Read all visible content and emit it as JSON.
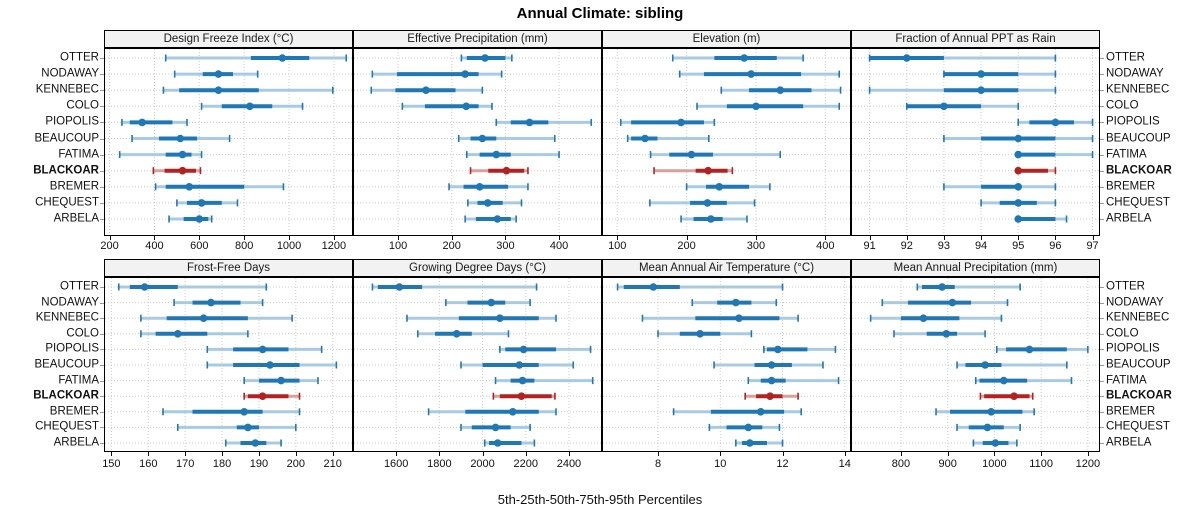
{
  "title": "Annual Climate: sibling",
  "caption": "5th-25th-50th-75th-95th Percentiles",
  "sites": [
    "OTTER",
    "NODAWAY",
    "KENNEBEC",
    "COLO",
    "PIOPOLIS",
    "BEAUCOUP",
    "FATIMA",
    "BLACKOAR",
    "BREMER",
    "CHEQUEST",
    "ARBELA"
  ],
  "highlight_site": "BLACKOAR",
  "colors": {
    "blue": "#1f77b4",
    "blue_light": "#a9cbe2",
    "red": "#b22222",
    "red_light": "#d9a09c",
    "strip_bg": "#f2f2f2",
    "panel_border": "#000000",
    "grid": "#cccccc",
    "text": "#111111"
  },
  "chart_data": {
    "type": "scatter",
    "subtype": "trellis-dot-whisker-percentiles",
    "percentiles": [
      5,
      25,
      50,
      75,
      95
    ],
    "legend_note": "each row shows 5th-25th-50th-75th-95th percentile whiskers with median dot; BLACKOAR highlighted red",
    "grid": "dotted",
    "panels": [
      {
        "title": "Design Freeze Index (°C)",
        "ticks": [
          200,
          400,
          600,
          800,
          1000,
          1200
        ],
        "xlim": [
          175,
          1285
        ],
        "values": [
          [
            450,
            830,
            970,
            1090,
            1255
          ],
          [
            490,
            615,
            685,
            750,
            860
          ],
          [
            440,
            510,
            685,
            865,
            1195
          ],
          [
            610,
            700,
            825,
            925,
            1060
          ],
          [
            255,
            290,
            345,
            480,
            545
          ],
          [
            300,
            420,
            515,
            590,
            735
          ],
          [
            245,
            450,
            525,
            565,
            610
          ],
          [
            395,
            445,
            525,
            585,
            605
          ],
          [
            405,
            450,
            555,
            800,
            975
          ],
          [
            500,
            545,
            610,
            700,
            770
          ],
          [
            465,
            530,
            600,
            640,
            655
          ]
        ]
      },
      {
        "title": "Effective Precipitation (mm)",
        "ticks": [
          100,
          200,
          300,
          400
        ],
        "xlim": [
          16,
          480
        ],
        "values": [
          [
            218,
            228,
            262,
            300,
            312
          ],
          [
            52,
            98,
            225,
            250,
            293
          ],
          [
            50,
            95,
            152,
            207,
            257
          ],
          [
            108,
            150,
            227,
            250,
            275
          ],
          [
            283,
            310,
            345,
            380,
            460
          ],
          [
            213,
            235,
            257,
            283,
            392
          ],
          [
            228,
            252,
            283,
            310,
            400
          ],
          [
            235,
            268,
            302,
            335,
            342
          ],
          [
            195,
            222,
            252,
            305,
            342
          ],
          [
            230,
            248,
            267,
            295,
            330
          ],
          [
            225,
            245,
            285,
            310,
            320
          ]
        ]
      },
      {
        "title": "Elevation (m)",
        "ticks": [
          100,
          200,
          300,
          400
        ],
        "xlim": [
          78,
          437
        ],
        "values": [
          [
            180,
            240,
            283,
            330,
            368
          ],
          [
            190,
            225,
            293,
            365,
            420
          ],
          [
            250,
            290,
            335,
            380,
            422
          ],
          [
            215,
            258,
            300,
            368,
            420
          ],
          [
            105,
            120,
            192,
            225,
            240
          ],
          [
            115,
            120,
            140,
            158,
            232
          ],
          [
            148,
            175,
            207,
            238,
            335
          ],
          [
            153,
            213,
            231,
            259,
            266
          ],
          [
            200,
            228,
            247,
            290,
            320
          ],
          [
            147,
            205,
            230,
            258,
            298
          ],
          [
            192,
            210,
            235,
            252,
            287
          ]
        ]
      },
      {
        "title": "Fraction of Annual PPT as Rain",
        "ticks": [
          91,
          92,
          93,
          94,
          95,
          96,
          97
        ],
        "xlim": [
          90.5,
          97.2
        ],
        "values": [
          [
            91,
            91,
            92,
            93,
            96
          ],
          [
            93,
            93,
            94,
            95,
            96
          ],
          [
            91,
            93,
            94,
            95,
            96
          ],
          [
            92,
            92,
            93,
            94,
            95
          ],
          [
            95,
            95.3,
            96,
            96.5,
            97
          ],
          [
            93,
            94,
            95,
            96,
            97
          ],
          [
            95,
            95,
            95,
            96,
            97
          ],
          [
            95,
            95,
            95,
            95.8,
            96
          ],
          [
            93,
            94,
            95,
            95,
            96
          ],
          [
            94,
            94.5,
            95,
            95.5,
            96
          ],
          [
            95,
            95,
            95,
            96,
            96.3
          ]
        ]
      },
      {
        "title": "Frost-Free Days",
        "ticks": [
          150,
          160,
          170,
          180,
          190,
          200,
          210
        ],
        "xlim": [
          148,
          215.5
        ],
        "values": [
          [
            152,
            155,
            159,
            168,
            192
          ],
          [
            167,
            172,
            177,
            185,
            191
          ],
          [
            158,
            165,
            175,
            187,
            199
          ],
          [
            158,
            162,
            168,
            176,
            187
          ],
          [
            176,
            183,
            191,
            198,
            207
          ],
          [
            176,
            183,
            193,
            201,
            211
          ],
          [
            186,
            190,
            196,
            201,
            206
          ],
          [
            186,
            187,
            191,
            198,
            201
          ],
          [
            164,
            172,
            186,
            191,
            201
          ],
          [
            168,
            184,
            187,
            190,
            200
          ],
          [
            181,
            185,
            189,
            192,
            196
          ]
        ]
      },
      {
        "title": "Growing Degree Days (°C)",
        "ticks": [
          1600,
          1800,
          2000,
          2200,
          2400
        ],
        "xlim": [
          1400,
          2553
        ],
        "values": [
          [
            1490,
            1515,
            1615,
            1720,
            2250
          ],
          [
            1830,
            1930,
            2040,
            2105,
            2220
          ],
          [
            1650,
            1890,
            2080,
            2260,
            2340
          ],
          [
            1700,
            1780,
            1880,
            1950,
            2120
          ],
          [
            2080,
            2105,
            2190,
            2340,
            2500
          ],
          [
            1900,
            2000,
            2170,
            2260,
            2420
          ],
          [
            2060,
            2130,
            2185,
            2240,
            2510
          ],
          [
            2050,
            2080,
            2180,
            2320,
            2335
          ],
          [
            1750,
            1920,
            2140,
            2260,
            2340
          ],
          [
            1900,
            1950,
            2060,
            2130,
            2220
          ],
          [
            2010,
            2030,
            2070,
            2180,
            2240
          ]
        ]
      },
      {
        "title": "Mean Annual Air Temperature (°C)",
        "ticks": [
          8,
          10,
          12,
          14
        ],
        "xlim": [
          6.2,
          14.2
        ],
        "values": [
          [
            6.7,
            6.9,
            7.85,
            8.7,
            12.0
          ],
          [
            9.1,
            9.9,
            10.5,
            11.0,
            11.8
          ],
          [
            7.5,
            9.2,
            10.6,
            11.9,
            12.5
          ],
          [
            8.0,
            8.7,
            9.35,
            10.0,
            11.0
          ],
          [
            11.4,
            11.5,
            11.85,
            12.8,
            13.7
          ],
          [
            9.8,
            11.1,
            11.65,
            12.3,
            13.3
          ],
          [
            10.9,
            11.3,
            11.65,
            12.1,
            13.8
          ],
          [
            10.8,
            11.15,
            11.6,
            12.0,
            12.5
          ],
          [
            8.5,
            9.7,
            11.3,
            12.05,
            12.6
          ],
          [
            9.65,
            10.2,
            10.9,
            11.35,
            11.9
          ],
          [
            10.5,
            10.7,
            10.95,
            11.5,
            12.0
          ]
        ]
      },
      {
        "title": "Mean Annual Precipitation (mm)",
        "ticks": [
          800,
          900,
          1000,
          1100,
          1200
        ],
        "xlim": [
          693,
          1226
        ],
        "values": [
          [
            835,
            845,
            888,
            915,
            1055
          ],
          [
            760,
            815,
            910,
            950,
            1028
          ],
          [
            735,
            800,
            848,
            925,
            1015
          ],
          [
            785,
            855,
            897,
            920,
            980
          ],
          [
            1005,
            1025,
            1075,
            1155,
            1200
          ],
          [
            920,
            938,
            980,
            1015,
            1155
          ],
          [
            960,
            968,
            1020,
            1070,
            1165
          ],
          [
            970,
            978,
            1042,
            1075,
            1082
          ],
          [
            875,
            905,
            993,
            1060,
            1085
          ],
          [
            920,
            945,
            985,
            1020,
            1055
          ],
          [
            955,
            975,
            1002,
            1030,
            1048
          ]
        ]
      }
    ]
  }
}
